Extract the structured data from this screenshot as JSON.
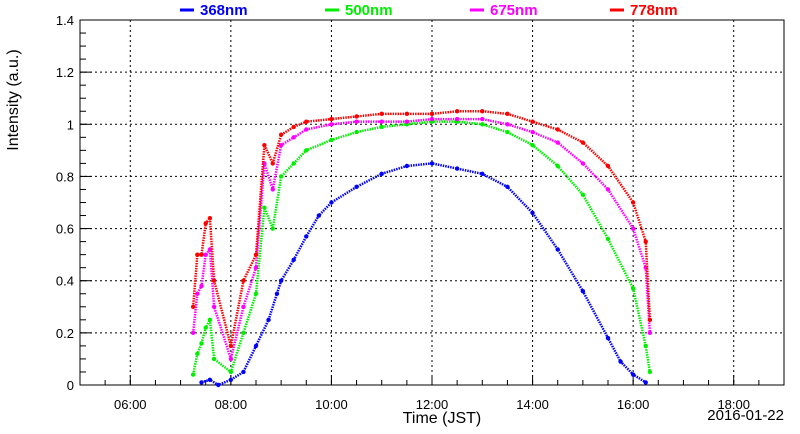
{
  "chart_data": {
    "type": "scatter",
    "xlabel": "Time (JST)",
    "ylabel": "Intensity (a.u.)",
    "date_label": "2016-01-22",
    "xlim": [
      "05:00",
      "19:00"
    ],
    "ylim": [
      0,
      1.4
    ],
    "x_ticks": [
      "06:00",
      "08:00",
      "10:00",
      "12:00",
      "14:00",
      "16:00",
      "18:00"
    ],
    "y_ticks": [
      "0",
      "0.2",
      "0.4",
      "0.6",
      "0.8",
      "1",
      "1.2",
      "1.4"
    ],
    "grid": true,
    "legend_position": "top",
    "series": [
      {
        "name": "368nm",
        "color": "#0000ff",
        "points": [
          [
            "07:25",
            0.01
          ],
          [
            "07:35",
            0.02
          ],
          [
            "07:45",
            0.0
          ],
          [
            "08:00",
            0.02
          ],
          [
            "08:15",
            0.05
          ],
          [
            "08:30",
            0.15
          ],
          [
            "08:45",
            0.25
          ],
          [
            "08:55",
            0.35
          ],
          [
            "09:00",
            0.4
          ],
          [
            "09:15",
            0.48
          ],
          [
            "09:30",
            0.57
          ],
          [
            "09:45",
            0.65
          ],
          [
            "10:00",
            0.7
          ],
          [
            "10:30",
            0.76
          ],
          [
            "11:00",
            0.81
          ],
          [
            "11:30",
            0.84
          ],
          [
            "12:00",
            0.85
          ],
          [
            "12:30",
            0.83
          ],
          [
            "13:00",
            0.81
          ],
          [
            "13:30",
            0.76
          ],
          [
            "14:00",
            0.66
          ],
          [
            "14:30",
            0.52
          ],
          [
            "15:00",
            0.36
          ],
          [
            "15:30",
            0.18
          ],
          [
            "15:45",
            0.09
          ],
          [
            "16:00",
            0.04
          ],
          [
            "16:15",
            0.01
          ]
        ]
      },
      {
        "name": "500nm",
        "color": "#00ee00",
        "points": [
          [
            "07:15",
            0.04
          ],
          [
            "07:20",
            0.12
          ],
          [
            "07:25",
            0.16
          ],
          [
            "07:30",
            0.22
          ],
          [
            "07:35",
            0.25
          ],
          [
            "07:40",
            0.1
          ],
          [
            "08:00",
            0.05
          ],
          [
            "08:15",
            0.2
          ],
          [
            "08:30",
            0.35
          ],
          [
            "08:40",
            0.68
          ],
          [
            "08:50",
            0.6
          ],
          [
            "09:00",
            0.8
          ],
          [
            "09:15",
            0.85
          ],
          [
            "09:30",
            0.9
          ],
          [
            "10:00",
            0.94
          ],
          [
            "10:30",
            0.97
          ],
          [
            "11:00",
            0.99
          ],
          [
            "11:30",
            1.0
          ],
          [
            "12:00",
            1.01
          ],
          [
            "12:30",
            1.01
          ],
          [
            "13:00",
            1.0
          ],
          [
            "13:30",
            0.97
          ],
          [
            "14:00",
            0.92
          ],
          [
            "14:30",
            0.84
          ],
          [
            "15:00",
            0.73
          ],
          [
            "15:30",
            0.56
          ],
          [
            "16:00",
            0.37
          ],
          [
            "16:15",
            0.15
          ],
          [
            "16:20",
            0.05
          ]
        ]
      },
      {
        "name": "675nm",
        "color": "#ff00ff",
        "points": [
          [
            "07:15",
            0.2
          ],
          [
            "07:20",
            0.35
          ],
          [
            "07:25",
            0.38
          ],
          [
            "07:30",
            0.5
          ],
          [
            "07:35",
            0.52
          ],
          [
            "07:40",
            0.3
          ],
          [
            "08:00",
            0.1
          ],
          [
            "08:15",
            0.3
          ],
          [
            "08:30",
            0.45
          ],
          [
            "08:40",
            0.85
          ],
          [
            "08:50",
            0.75
          ],
          [
            "09:00",
            0.92
          ],
          [
            "09:15",
            0.95
          ],
          [
            "09:30",
            0.98
          ],
          [
            "10:00",
            1.0
          ],
          [
            "10:30",
            1.01
          ],
          [
            "11:00",
            1.01
          ],
          [
            "11:30",
            1.01
          ],
          [
            "12:00",
            1.02
          ],
          [
            "12:30",
            1.02
          ],
          [
            "13:00",
            1.02
          ],
          [
            "13:30",
            1.0
          ],
          [
            "14:00",
            0.97
          ],
          [
            "14:30",
            0.93
          ],
          [
            "15:00",
            0.85
          ],
          [
            "15:30",
            0.75
          ],
          [
            "16:00",
            0.6
          ],
          [
            "16:15",
            0.45
          ],
          [
            "16:20",
            0.2
          ]
        ]
      },
      {
        "name": "778nm",
        "color": "#ff0000",
        "points": [
          [
            "07:15",
            0.3
          ],
          [
            "07:20",
            0.5
          ],
          [
            "07:25",
            0.5
          ],
          [
            "07:30",
            0.62
          ],
          [
            "07:35",
            0.64
          ],
          [
            "07:40",
            0.4
          ],
          [
            "08:00",
            0.15
          ],
          [
            "08:15",
            0.4
          ],
          [
            "08:30",
            0.5
          ],
          [
            "08:40",
            0.92
          ],
          [
            "08:50",
            0.85
          ],
          [
            "09:00",
            0.96
          ],
          [
            "09:15",
            0.99
          ],
          [
            "09:30",
            1.01
          ],
          [
            "10:00",
            1.02
          ],
          [
            "10:30",
            1.03
          ],
          [
            "11:00",
            1.04
          ],
          [
            "11:30",
            1.04
          ],
          [
            "12:00",
            1.04
          ],
          [
            "12:30",
            1.05
          ],
          [
            "13:00",
            1.05
          ],
          [
            "13:30",
            1.04
          ],
          [
            "14:00",
            1.01
          ],
          [
            "14:30",
            0.98
          ],
          [
            "15:00",
            0.93
          ],
          [
            "15:30",
            0.84
          ],
          [
            "16:00",
            0.7
          ],
          [
            "16:15",
            0.55
          ],
          [
            "16:20",
            0.25
          ]
        ]
      }
    ]
  }
}
